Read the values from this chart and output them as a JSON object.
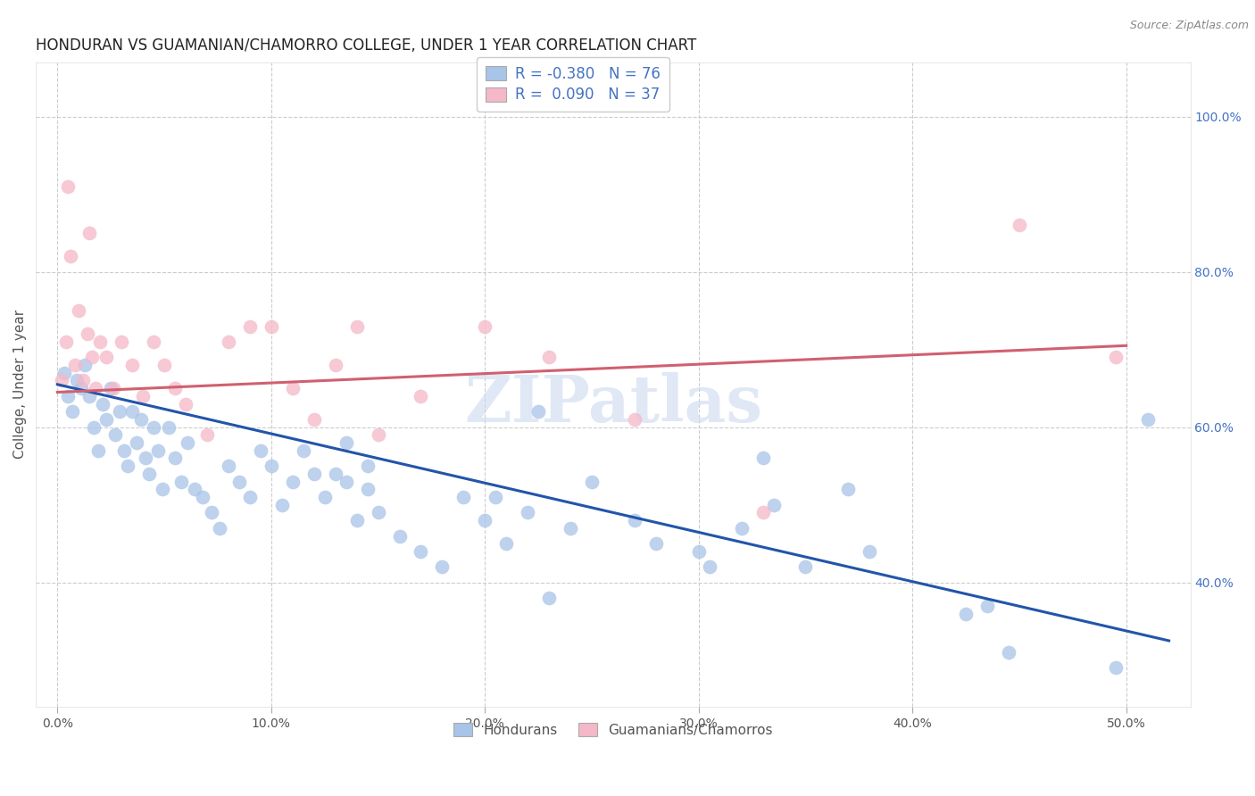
{
  "title": "HONDURAN VS GUAMANIAN/CHAMORRO COLLEGE, UNDER 1 YEAR CORRELATION CHART",
  "source": "Source: ZipAtlas.com",
  "ylabel": "College, Under 1 year",
  "x_tick_labels": [
    "0.0%",
    "10.0%",
    "20.0%",
    "30.0%",
    "40.0%",
    "50.0%"
  ],
  "x_tick_vals": [
    0.0,
    10.0,
    20.0,
    30.0,
    40.0,
    50.0
  ],
  "y_tick_labels": [
    "40.0%",
    "60.0%",
    "80.0%",
    "100.0%"
  ],
  "y_tick_vals": [
    40.0,
    60.0,
    80.0,
    100.0
  ],
  "xlim": [
    -1.0,
    53
  ],
  "ylim": [
    24,
    107
  ],
  "blue_color": "#a8c4e8",
  "pink_color": "#f5b8c8",
  "blue_line_color": "#2255aa",
  "pink_line_color": "#d06070",
  "legend_R_blue": "-0.380",
  "legend_N_blue": "76",
  "legend_R_pink": "0.090",
  "legend_N_pink": "37",
  "legend_label_blue": "Hondurans",
  "legend_label_pink": "Guamanians/Chamorros",
  "watermark": "ZIPatlas",
  "title_color": "#222222",
  "axis_label_color": "#555555",
  "tick_color_right": "#4472c4",
  "grid_color": "#cccccc",
  "background_color": "#ffffff",
  "blue_scatter_x": [
    0.3,
    0.5,
    0.7,
    0.9,
    1.1,
    1.3,
    1.5,
    1.7,
    1.9,
    2.1,
    2.3,
    2.5,
    2.7,
    2.9,
    3.1,
    3.3,
    3.5,
    3.7,
    3.9,
    4.1,
    4.3,
    4.5,
    4.7,
    4.9,
    5.2,
    5.5,
    5.8,
    6.1,
    6.4,
    6.8,
    7.2,
    7.6,
    8.0,
    8.5,
    9.0,
    9.5,
    10.0,
    10.5,
    11.0,
    11.5,
    12.0,
    12.5,
    13.0,
    13.5,
    14.0,
    14.5,
    15.0,
    16.0,
    17.0,
    18.0,
    19.0,
    20.0,
    21.0,
    22.0,
    23.0,
    24.0,
    25.0,
    27.0,
    28.0,
    30.0,
    32.0,
    33.0,
    35.0,
    37.0,
    38.0,
    13.5,
    14.5,
    20.5,
    22.5,
    30.5,
    33.5,
    42.5,
    43.5,
    44.5,
    49.5,
    51.0
  ],
  "blue_scatter_y": [
    67,
    64,
    62,
    66,
    65,
    68,
    64,
    60,
    57,
    63,
    61,
    65,
    59,
    62,
    57,
    55,
    62,
    58,
    61,
    56,
    54,
    60,
    57,
    52,
    60,
    56,
    53,
    58,
    52,
    51,
    49,
    47,
    55,
    53,
    51,
    57,
    55,
    50,
    53,
    57,
    54,
    51,
    54,
    53,
    48,
    52,
    49,
    46,
    44,
    42,
    51,
    48,
    45,
    49,
    38,
    47,
    53,
    48,
    45,
    44,
    47,
    56,
    42,
    52,
    44,
    58,
    55,
    51,
    62,
    42,
    50,
    36,
    37,
    31,
    29,
    61
  ],
  "pink_scatter_x": [
    0.2,
    0.4,
    0.6,
    0.8,
    1.0,
    1.2,
    1.4,
    1.6,
    1.8,
    2.0,
    2.3,
    2.6,
    3.0,
    3.5,
    4.0,
    4.5,
    5.0,
    5.5,
    6.0,
    7.0,
    8.0,
    9.0,
    10.0,
    11.0,
    12.0,
    13.0,
    14.0,
    15.0,
    17.0,
    20.0,
    23.0,
    27.0,
    33.0,
    45.0,
    49.5,
    0.5,
    1.5
  ],
  "pink_scatter_y": [
    66,
    71,
    82,
    68,
    75,
    66,
    72,
    69,
    65,
    71,
    69,
    65,
    71,
    68,
    64,
    71,
    68,
    65,
    63,
    59,
    71,
    73,
    73,
    65,
    61,
    68,
    73,
    59,
    64,
    73,
    69,
    61,
    49,
    86,
    69,
    91,
    85
  ],
  "blue_trend_x": [
    0,
    52
  ],
  "blue_trend_y": [
    65.5,
    32.5
  ],
  "pink_trend_x": [
    0,
    50
  ],
  "pink_trend_y": [
    64.5,
    70.5
  ]
}
